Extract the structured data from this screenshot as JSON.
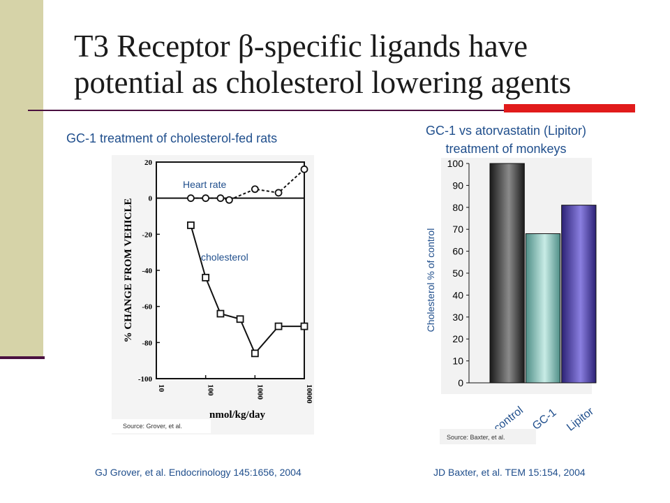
{
  "slide": {
    "title_line1": "T3 Receptor β-specific ligands have",
    "title_line2": "potential as cholesterol lowering agents",
    "left_caption": "GC-1 treatment of cholesterol-fed rats",
    "right_caption_line1": "GC-1 vs atorvastatin (Lipitor)",
    "right_caption_line2": "treatment of monkeys",
    "citation_left": "GJ Grover, et al. Endocrinology 145:1656, 2004",
    "citation_right": "JD Baxter, et al. TEM 15:154, 2004"
  },
  "colors": {
    "sidebar": "#d6d3a8",
    "rule": "#4a1040",
    "accent": "#e11b1b",
    "caption_blue": "#1f4e8c"
  },
  "chart_data": [
    {
      "type": "line",
      "ylabel": "% CHANGE FROM VEHICLE",
      "xlabel": "nmol/kg/day",
      "x_scale": "log",
      "xlim": [
        10,
        10000
      ],
      "ylim": [
        -100,
        20
      ],
      "x_ticks": [
        "10",
        "100",
        "1000",
        "10000"
      ],
      "y_ticks": [
        "20",
        "0",
        "-20",
        "-40",
        "-60",
        "-80",
        "-100"
      ],
      "series": [
        {
          "name": "Heart rate",
          "style": "dashed-circle",
          "x": [
            50,
            100,
            200,
            300,
            1000,
            3000,
            10000
          ],
          "values": [
            0,
            0,
            0,
            -1,
            5,
            3,
            16
          ]
        },
        {
          "name": "cholesterol",
          "style": "solid-square",
          "x": [
            50,
            100,
            200,
            500,
            1000,
            3000,
            10000
          ],
          "values": [
            -15,
            -44,
            -64,
            -67,
            -86,
            -71,
            -71
          ]
        }
      ],
      "source": "Source: Grover, et al."
    },
    {
      "type": "bar",
      "ylabel": "Cholesterol % of control",
      "categories": [
        "control",
        "GC-1",
        "Lipitor"
      ],
      "values": [
        100,
        68,
        81
      ],
      "ylim": [
        0,
        100
      ],
      "y_ticks": [
        "0",
        "10",
        "20",
        "30",
        "40",
        "50",
        "60",
        "70",
        "80",
        "90",
        "100"
      ],
      "colors": [
        "#3a3a3a",
        "#7fb8b0",
        "#4a3f9c"
      ],
      "source": "Source: Baxter, et al."
    }
  ]
}
